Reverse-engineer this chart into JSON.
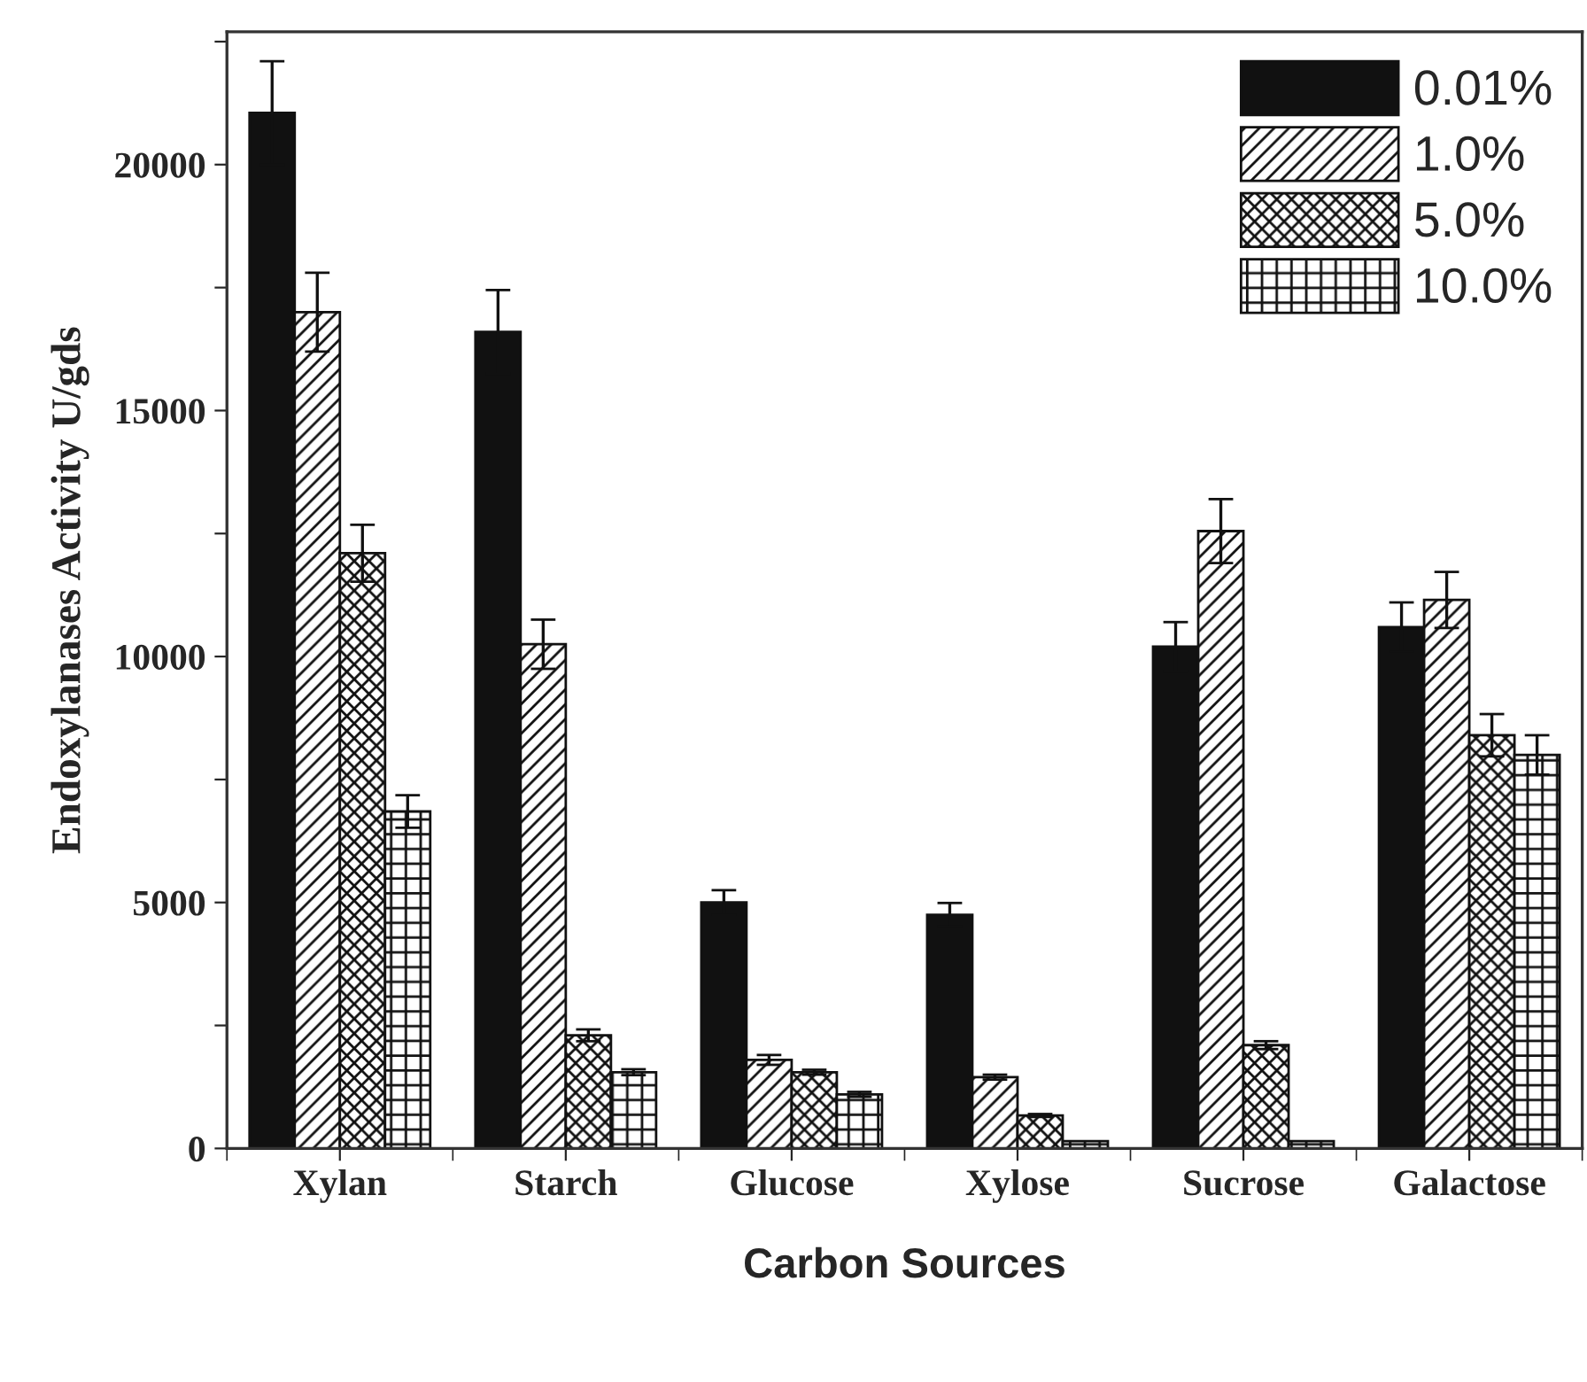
{
  "chart_data": {
    "type": "bar",
    "xlabel": "Carbon Sources",
    "ylabel": "Endoxylanases Activity U/gds",
    "categories": [
      "Xylan",
      "Starch",
      "Glucose",
      "Xylose",
      "Sucrose",
      "Galactose"
    ],
    "series": [
      {
        "name": "0.01%",
        "color": "#111111",
        "values": [
          21050,
          16600,
          5000,
          4750,
          10200,
          10600
        ],
        "errors": [
          1050,
          850,
          250,
          240,
          500,
          500
        ]
      },
      {
        "name": "1.0%",
        "color": "#111111",
        "values": [
          17000,
          10250,
          1800,
          1450,
          12550,
          11150
        ],
        "errors": [
          800,
          500,
          100,
          50,
          650,
          570
        ]
      },
      {
        "name": "5.0%",
        "color": "#111111",
        "values": [
          12100,
          2300,
          1550,
          670,
          2100,
          8400
        ],
        "errors": [
          580,
          120,
          50,
          30,
          80,
          430
        ]
      },
      {
        "name": "10.0%",
        "color": "#111111",
        "values": [
          6850,
          1550,
          1100,
          150,
          150,
          8000
        ],
        "errors": [
          330,
          60,
          50,
          null,
          null,
          400
        ]
      }
    ],
    "ylim": [
      0,
      22700
    ],
    "yticks": [
      0,
      {
        "value": 2500,
        "label": null
      },
      5000,
      {
        "value": 7500,
        "label": null
      },
      10000,
      {
        "value": 12500,
        "label": null
      },
      15000,
      {
        "value": 17500,
        "label": null
      },
      20000,
      {
        "value": 22500,
        "label": null
      }
    ],
    "grid": false,
    "legend": "top right"
  }
}
